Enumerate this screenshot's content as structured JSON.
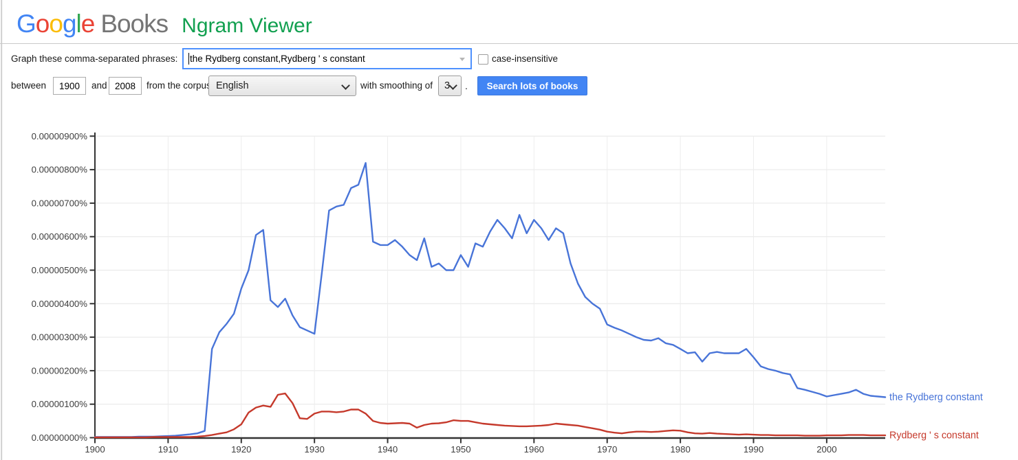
{
  "header": {
    "logo_letters": [
      {
        "ch": "G",
        "color": "#4285F4"
      },
      {
        "ch": "o",
        "color": "#EA4335"
      },
      {
        "ch": "o",
        "color": "#FBBC05"
      },
      {
        "ch": "g",
        "color": "#4285F4"
      },
      {
        "ch": "l",
        "color": "#34A853"
      },
      {
        "ch": "e",
        "color": "#EA4335"
      }
    ],
    "logo_books": "Books",
    "app_title": "Ngram Viewer"
  },
  "form": {
    "phrases_label": "Graph these comma-separated phrases:",
    "phrases_value": "the Rydberg constant,Rydberg ' s constant",
    "case_insensitive_label": "case-insensitive",
    "between_label": "between",
    "year_start": "1900",
    "and_label": "and",
    "year_end": "2008",
    "corpus_label": "from the corpus",
    "corpus_value": "English",
    "smoothing_label": "with smoothing of",
    "smoothing_value": "3",
    "period_label": ".",
    "search_button_label": "Search lots of books"
  },
  "colors": {
    "series_blue": "#4874d8",
    "series_red": "#c5392b",
    "button_blue": "#4285f4",
    "title_green": "#12a050",
    "axis": "#333333",
    "gridline": "#e6e6e6"
  },
  "chart_data": {
    "type": "line",
    "title": "",
    "xlabel": "",
    "ylabel": "",
    "values_unit": "percent x 1e-8 (100 = 0.00000100%)",
    "years": {
      "start": 1900,
      "end": 2008,
      "step": 1
    },
    "ylim": [
      0,
      900
    ],
    "grid": true,
    "legend_position": "right-of-line-ends",
    "y_ticks": [
      "0.00000000%",
      "0.00000100%",
      "0.00000200%",
      "0.00000300%",
      "0.00000400%",
      "0.00000500%",
      "0.00000600%",
      "0.00000700%",
      "0.00000800%",
      "0.00000900%"
    ],
    "x_ticks": [
      "1900",
      "1910",
      "1920",
      "1930",
      "1940",
      "1950",
      "1960",
      "1970",
      "1980",
      "1990",
      "2000"
    ],
    "series": [
      {
        "id": "the-rydberg-constant",
        "name": "the Rydberg constant",
        "color": "#4874d8",
        "values": [
          2,
          2,
          2,
          2,
          2,
          2,
          3,
          3,
          3,
          4,
          5,
          6,
          8,
          10,
          13,
          20,
          265,
          315,
          340,
          370,
          445,
          500,
          605,
          620,
          410,
          390,
          415,
          365,
          330,
          320,
          310,
          490,
          678,
          690,
          695,
          745,
          755,
          820,
          585,
          575,
          575,
          590,
          570,
          545,
          530,
          595,
          510,
          520,
          500,
          500,
          545,
          510,
          580,
          570,
          615,
          650,
          625,
          595,
          665,
          610,
          650,
          625,
          590,
          625,
          610,
          520,
          460,
          420,
          400,
          385,
          338,
          328,
          320,
          310,
          300,
          292,
          290,
          297,
          282,
          277,
          265,
          252,
          255,
          227,
          252,
          256,
          252,
          252,
          252,
          265,
          240,
          213,
          205,
          200,
          193,
          189,
          148,
          143,
          137,
          131,
          123,
          127,
          131,
          135,
          143,
          131,
          125,
          123,
          121
        ]
      },
      {
        "id": "rydberg-s-constant",
        "name": "Rydberg ' s constant",
        "color": "#c5392b",
        "values": [
          1,
          1,
          1,
          1,
          1,
          1,
          1,
          1,
          2,
          2,
          2,
          2,
          2,
          2,
          3,
          5,
          8,
          12,
          16,
          25,
          40,
          75,
          90,
          96,
          92,
          128,
          132,
          103,
          58,
          56,
          72,
          78,
          78,
          76,
          78,
          84,
          84,
          72,
          50,
          44,
          42,
          43,
          44,
          42,
          30,
          38,
          42,
          43,
          46,
          52,
          50,
          50,
          46,
          42,
          40,
          38,
          36,
          35,
          34,
          34,
          35,
          36,
          38,
          42,
          40,
          38,
          36,
          32,
          28,
          24,
          18,
          15,
          13,
          16,
          18,
          18,
          17,
          18,
          20,
          22,
          21,
          16,
          13,
          12,
          14,
          12,
          11,
          10,
          9,
          10,
          9,
          8,
          8,
          7,
          7,
          7,
          7,
          6,
          6,
          6,
          7,
          7,
          7,
          8,
          8,
          8,
          7,
          7,
          7
        ]
      }
    ]
  }
}
